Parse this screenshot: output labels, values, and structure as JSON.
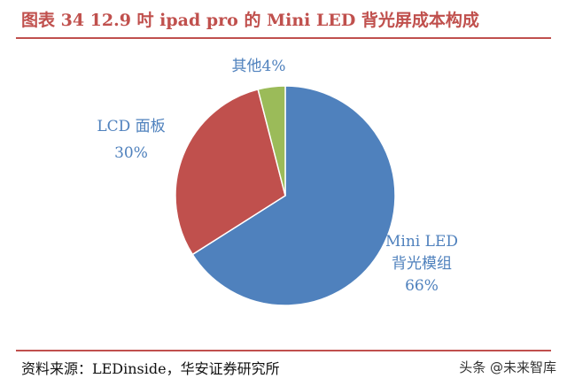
{
  "header": {
    "title": "图表 34 12.9 吋 ipad pro 的 Mini LED 背光屏成本构成"
  },
  "footer": {
    "source": "资料来源：LEDinside，华安证券研究所",
    "watermark": "头条 @未来智库"
  },
  "colors": {
    "accent": "#c0504d",
    "label": "#4f81bd"
  },
  "chart_data": {
    "type": "pie",
    "slices": [
      {
        "label": "Mini LED 背光模组",
        "label_lines": [
          "Mini LED",
          "背光模组"
        ],
        "percent_label": "66%",
        "value": 66,
        "color": "#4f81bd"
      },
      {
        "label": "LCD 面板",
        "label_lines": [
          "LCD 面板"
        ],
        "percent_label": "30%",
        "value": 30,
        "color": "#c0504d"
      },
      {
        "label": "其他",
        "label_lines": [
          "其他4%"
        ],
        "percent_label": "",
        "value": 4,
        "color": "#9bbb59"
      }
    ]
  }
}
